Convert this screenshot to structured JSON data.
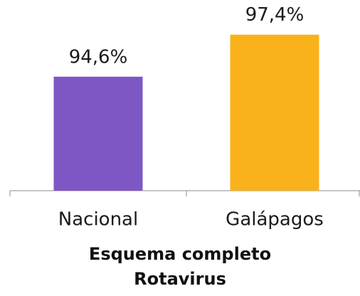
{
  "chart_data": {
    "type": "bar",
    "categories": [
      "Nacional",
      "Galápagos"
    ],
    "series": [
      {
        "name": "Esquema completo Rotavirus",
        "colors": [
          "#7e57c5",
          "#f9b21b"
        ],
        "values": [
          94.6,
          97.4
        ],
        "value_labels": [
          "94,6%",
          "97,4%"
        ]
      }
    ],
    "xlabel": "Esquema completo Rotavirus",
    "ylim": [
      87,
      99
    ]
  }
}
